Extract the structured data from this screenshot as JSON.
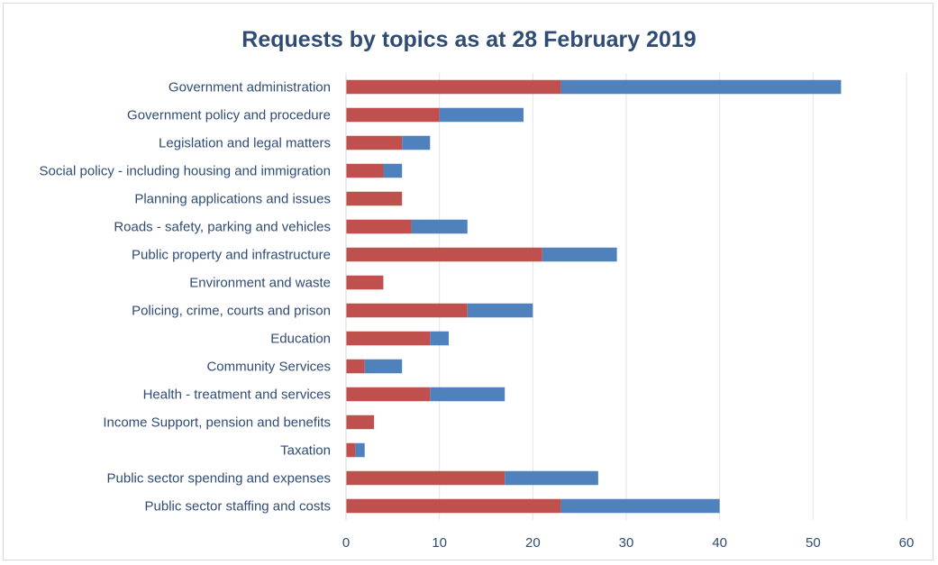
{
  "chart_data": {
    "type": "bar",
    "orientation": "horizontal",
    "stacked": true,
    "title": "Requests by topics as at 28 February 2019",
    "categories": [
      "Government administration",
      "Government policy and procedure",
      "Legislation and legal matters",
      "Social policy - including housing and immigration",
      "Planning applications and issues",
      "Roads - safety, parking and vehicles",
      "Public property and infrastructure",
      "Environment and waste",
      "Policing, crime, courts and prison",
      "Education",
      "Community Services",
      "Health - treatment and services",
      "Income Support, pension and benefits",
      "Taxation",
      "Public sector spending and expenses",
      "Public sector staffing and costs"
    ],
    "series": [
      {
        "color": "#c0504d",
        "values": [
          23,
          10,
          6,
          4,
          6,
          7,
          21,
          4,
          13,
          9,
          2,
          9,
          3,
          1,
          17,
          23
        ]
      },
      {
        "color": "#4f81bd",
        "values": [
          30,
          9,
          3,
          2,
          0,
          6,
          8,
          0,
          7,
          2,
          4,
          8,
          0,
          1,
          10,
          17
        ]
      }
    ],
    "xlim": [
      0,
      60
    ],
    "xticks": [
      0,
      10,
      20,
      30,
      40,
      50,
      60
    ],
    "grid": true,
    "legend": false
  }
}
